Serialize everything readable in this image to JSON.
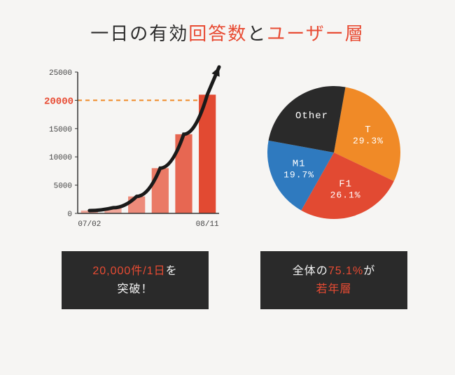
{
  "title": {
    "part1": "一日の有効",
    "accent1": "回答数",
    "part2": "と",
    "accent2": "ユーザー層"
  },
  "bar_chart": {
    "type": "bar",
    "categories": [
      "07/02",
      "",
      "",
      "",
      "",
      "08/11"
    ],
    "x_start_label": "07/02",
    "x_end_label": "08/11",
    "values": [
      500,
      1000,
      3000,
      8000,
      14000,
      21000
    ],
    "bar_colors": [
      "#f2a79a",
      "#f2a79a",
      "#ed8b7a",
      "#ea7a66",
      "#e76752",
      "#e24a32"
    ],
    "ylim": [
      0,
      25000
    ],
    "yticks": [
      0,
      5000,
      10000,
      15000,
      20000,
      25000
    ],
    "highlight_value": 20000,
    "highlight_color": "#f08a27",
    "axis_color": "#333333",
    "background": "#f6f5f3",
    "bar_width": 0.72,
    "arrow_color": "#1a1a1a",
    "arrow_width": 5
  },
  "pie_chart": {
    "type": "pie",
    "slices": [
      {
        "label": "T",
        "pct": 29.3,
        "color": "#f08a27",
        "text_color": "#ffffff"
      },
      {
        "label": "F1",
        "pct": 26.1,
        "color": "#e24a32",
        "text_color": "#ffffff"
      },
      {
        "label": "M1",
        "pct": 19.7,
        "color": "#2f7abf",
        "text_color": "#ffffff"
      },
      {
        "label": "Other",
        "pct": 24.9,
        "color": "#2a2a2a",
        "text_color": "#ffffff",
        "hide_pct": true
      }
    ],
    "start_angle_deg": -80,
    "radius": 95
  },
  "caption_left": {
    "accent": "20,000件/1日",
    "rest1": "を",
    "line2": "突破！"
  },
  "caption_right": {
    "pre": "全体の",
    "accent1": "75.1%",
    "post": "が",
    "line2_accent": "若年層"
  }
}
